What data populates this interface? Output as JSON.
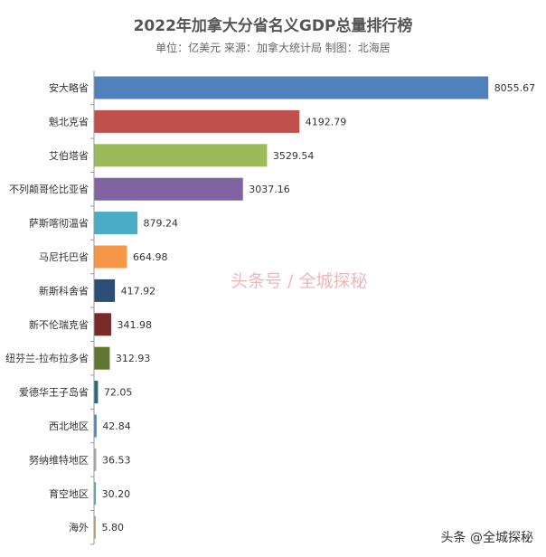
{
  "chart_data": {
    "type": "bar",
    "orientation": "horizontal",
    "title": "2022年加拿大分省名义GDP总量排行榜",
    "subtitle": "单位：亿美元   来源：加拿大统计局   制图：北海居",
    "categories": [
      "安大略省",
      "魁北克省",
      "艾伯塔省",
      "不列颠哥伦比亚省",
      "萨斯喀彻温省",
      "马尼托巴省",
      "新斯科舍省",
      "新不伦瑞克省",
      "纽芬兰-拉布拉多省",
      "爱德华王子岛省",
      "西北地区",
      "努纳维特地区",
      "育空地区",
      "海外"
    ],
    "values": [
      8055.67,
      4192.79,
      3529.54,
      3037.16,
      879.24,
      664.98,
      417.92,
      341.98,
      312.93,
      72.05,
      42.84,
      36.53,
      30.2,
      5.8
    ],
    "value_labels": [
      "8055.67",
      "4192.79",
      "3529.54",
      "3037.16",
      "879.24",
      "664.98",
      "417.92",
      "341.98",
      "312.93",
      "72.05",
      "42.84",
      "36.53",
      "30.20",
      "5.80"
    ],
    "colors": [
      "#4f81bd",
      "#c0504d",
      "#9bbb59",
      "#8064a2",
      "#4bacc6",
      "#f79646",
      "#2c4d75",
      "#772c2a",
      "#5f7530",
      "#276a7c",
      "#4f81bd",
      "#aaaaaa",
      "#4bacc6",
      "#f79646"
    ],
    "xlim": [
      0,
      8200
    ],
    "grid": false,
    "legend": "none"
  },
  "watermark": "头条号 / 全城探秘",
  "credit": "头条 @全城探秘"
}
